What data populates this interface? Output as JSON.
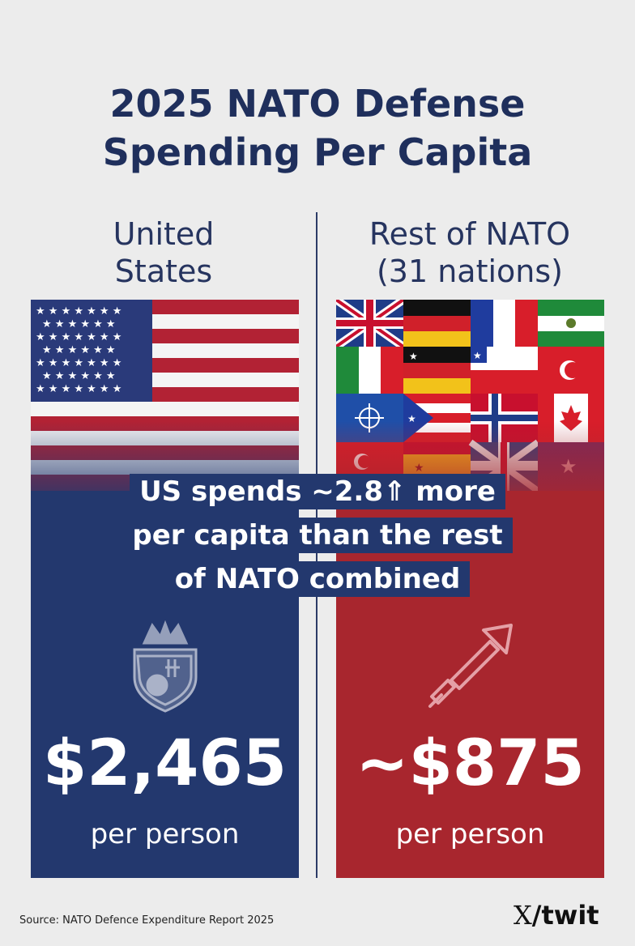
{
  "header": {
    "title_line1": "2025 NATO Defense",
    "title_line2": "Spending Per Capita"
  },
  "left": {
    "heading_line1": "United",
    "heading_line2": "States",
    "value": "$2,465",
    "unit": "per person",
    "emblem_icon": "shield-crest-icon",
    "color": "#23386e"
  },
  "right": {
    "heading_line1": "Rest of NATO",
    "heading_line2": "(31 nations)",
    "value": "~$875",
    "unit": "per person",
    "emblem_icon": "rising-arrow-icon",
    "color": "#a8262e"
  },
  "callout": {
    "line1": "US spends ~2.8⇑ more",
    "line2": "per capita than the rest",
    "line3": "of NATO combined"
  },
  "footer": {
    "source": "Source: NATO Defence Expenditure Report 2025",
    "brand_mark": "X",
    "brand_text": "/twit"
  }
}
